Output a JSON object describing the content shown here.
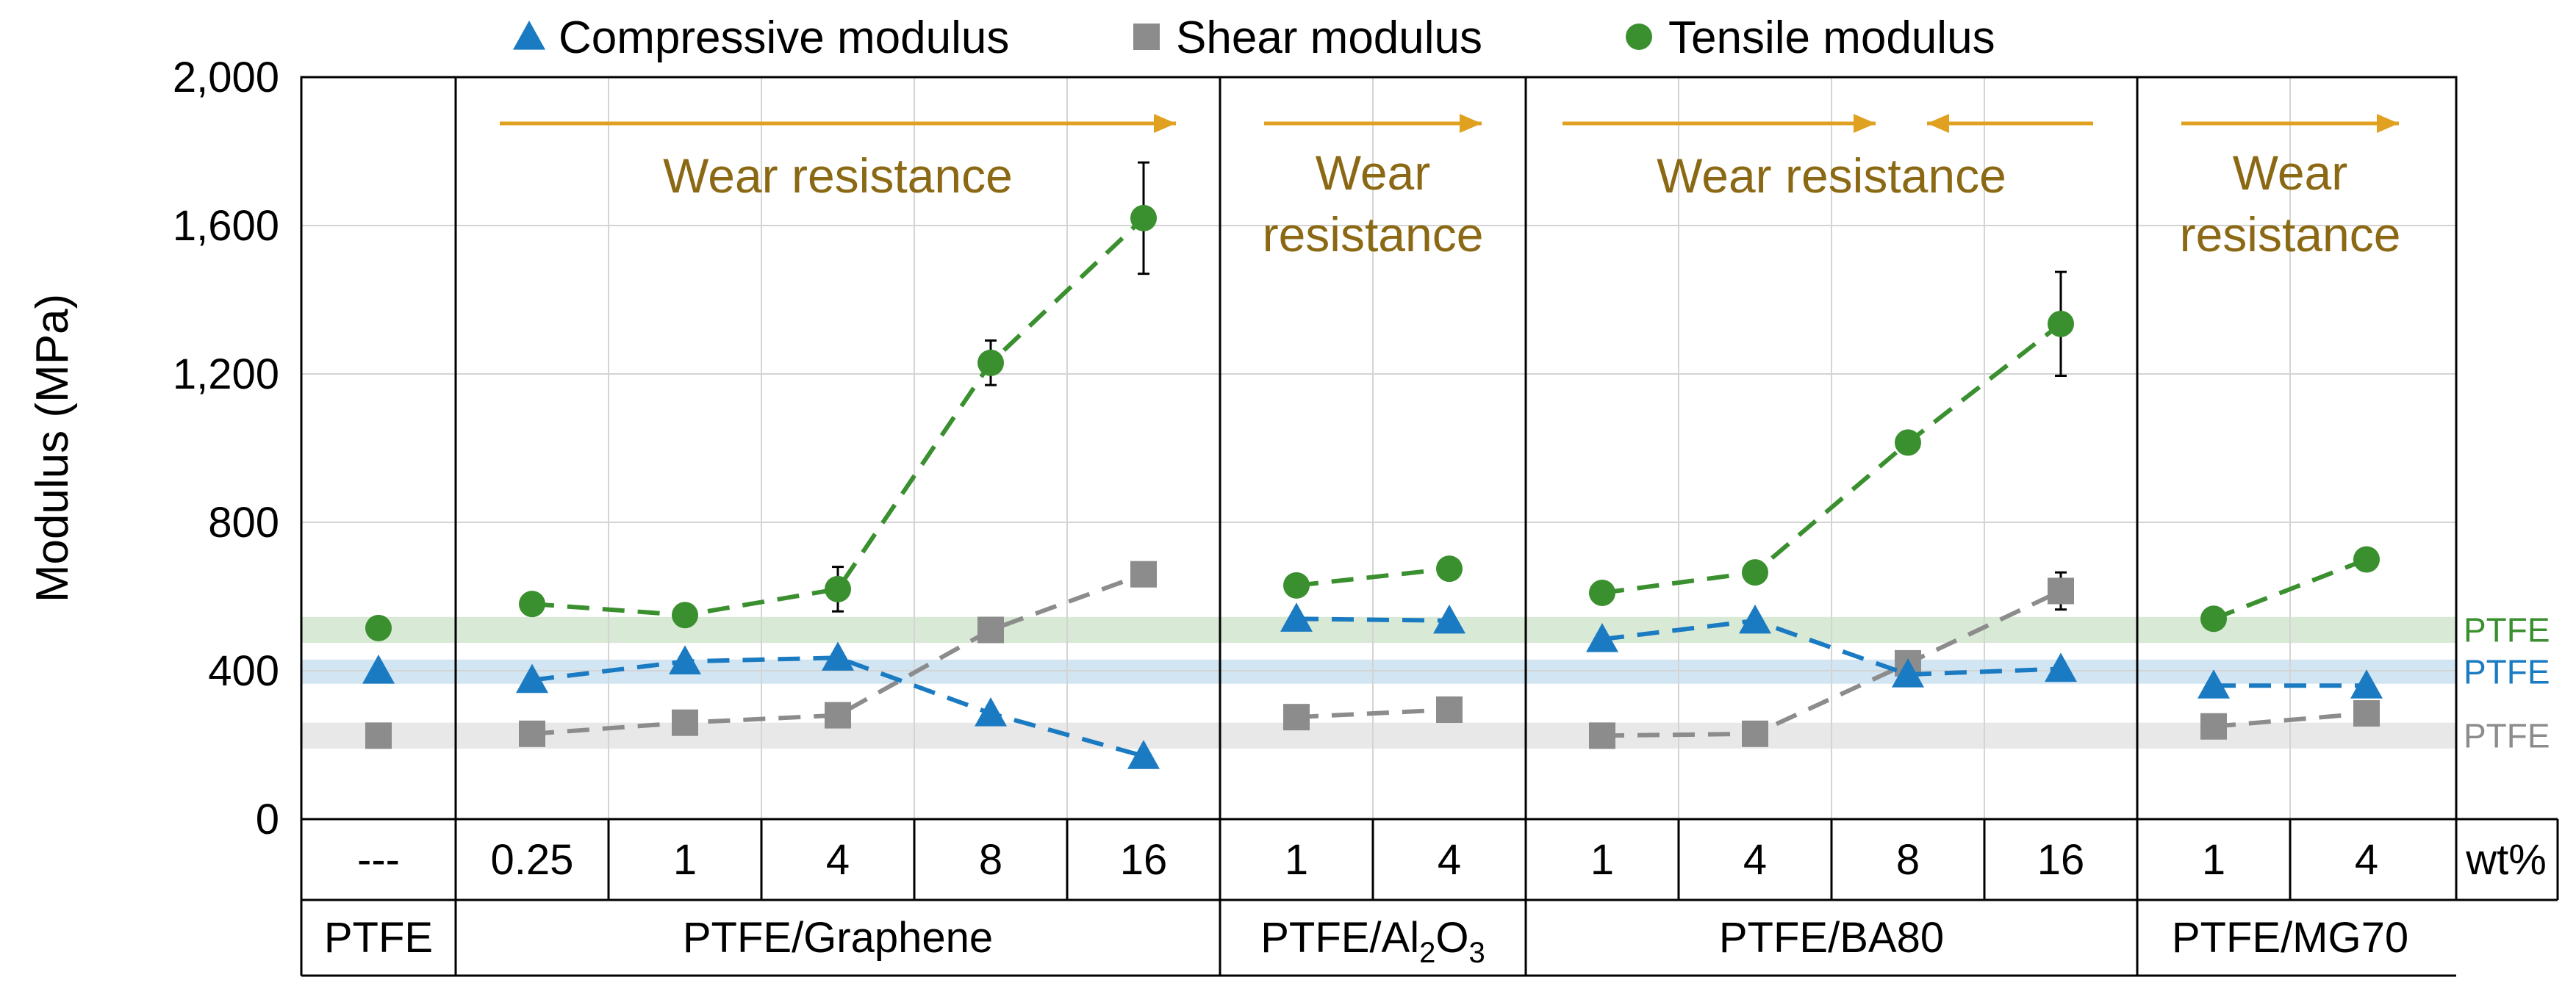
{
  "chart_data": {
    "type": "line",
    "ylabel": "Modulus (MPa)",
    "ylim": [
      0,
      2000
    ],
    "yticks": [
      0,
      400,
      800,
      1200,
      1600,
      2000
    ],
    "ytick_labels": [
      "0",
      "400",
      "800",
      "1,200",
      "1,600",
      "2,000"
    ],
    "grid": true,
    "legend_position": "top",
    "unit_label": "wt%",
    "legend": [
      {
        "key": "compressive",
        "label": "Compressive modulus",
        "marker": "triangle",
        "color": "#1B7BC2"
      },
      {
        "key": "shear",
        "label": "Shear modulus",
        "marker": "square",
        "color": "#8C8C8C"
      },
      {
        "key": "tensile",
        "label": "Tensile modulus",
        "marker": "circle",
        "color": "#3A8F2E"
      }
    ],
    "reference_bands": [
      {
        "label": "PTFE",
        "series": "tensile",
        "low": 475,
        "high": 545,
        "color": "#3A8F2E"
      },
      {
        "label": "PTFE",
        "series": "compressive",
        "low": 365,
        "high": 430,
        "color": "#1B7BC2"
      },
      {
        "label": "PTFE",
        "series": "shear",
        "low": 190,
        "high": 260,
        "color": "#8C8C8C"
      }
    ],
    "groups": [
      {
        "name": "PTFE",
        "name_main": "PTFE",
        "name_sub": "",
        "name_tail": "",
        "categories": [
          "---"
        ],
        "annotation": null,
        "series": {
          "compressive": [
            400
          ],
          "shear": [
            225
          ],
          "tensile": [
            515
          ]
        },
        "errors": {}
      },
      {
        "name": "PTFE/Graphene",
        "name_main": "PTFE/Graphene",
        "name_sub": "",
        "name_tail": "",
        "categories": [
          "0.25",
          "1",
          "4",
          "8",
          "16"
        ],
        "annotation": {
          "lines": [
            "Wear resistance"
          ],
          "arrows": [
            "right"
          ]
        },
        "series": {
          "compressive": [
            375,
            425,
            435,
            285,
            170
          ],
          "shear": [
            230,
            260,
            280,
            510,
            660
          ],
          "tensile": [
            580,
            550,
            620,
            1230,
            1620
          ]
        },
        "errors": {
          "tensile": [
            0,
            0,
            60,
            60,
            150
          ],
          "shear": [
            0,
            0,
            0,
            0,
            0
          ]
        }
      },
      {
        "name": "PTFE/Al2O3",
        "name_main": "PTFE/Al",
        "name_sub": "2",
        "name_tail": "O",
        "name_sub2": "3",
        "categories": [
          "1",
          "4"
        ],
        "annotation": {
          "lines": [
            "Wear",
            "resistance"
          ],
          "arrows": [
            "right"
          ]
        },
        "series": {
          "compressive": [
            540,
            535
          ],
          "shear": [
            275,
            295
          ],
          "tensile": [
            630,
            675
          ]
        },
        "errors": {}
      },
      {
        "name": "PTFE/BA80",
        "name_main": "PTFE/BA80",
        "name_sub": "",
        "name_tail": "",
        "categories": [
          "1",
          "4",
          "8",
          "16"
        ],
        "annotation": {
          "lines": [
            "Wear resistance"
          ],
          "arrows": [
            "right",
            "left"
          ]
        },
        "series": {
          "compressive": [
            485,
            535,
            390,
            405
          ],
          "shear": [
            225,
            230,
            420,
            615
          ],
          "tensile": [
            610,
            665,
            1015,
            1335
          ]
        },
        "errors": {
          "tensile": [
            0,
            0,
            0,
            140
          ],
          "shear": [
            0,
            0,
            0,
            50
          ]
        }
      },
      {
        "name": "PTFE/MG70",
        "name_main": "PTFE/MG70",
        "name_sub": "",
        "name_tail": "",
        "categories": [
          "1",
          "4"
        ],
        "annotation": {
          "lines": [
            "Wear",
            "resistance"
          ],
          "arrows": [
            "right"
          ]
        },
        "series": {
          "compressive": [
            360,
            360
          ],
          "shear": [
            250,
            285
          ],
          "tensile": [
            540,
            700
          ]
        },
        "errors": {}
      }
    ]
  }
}
